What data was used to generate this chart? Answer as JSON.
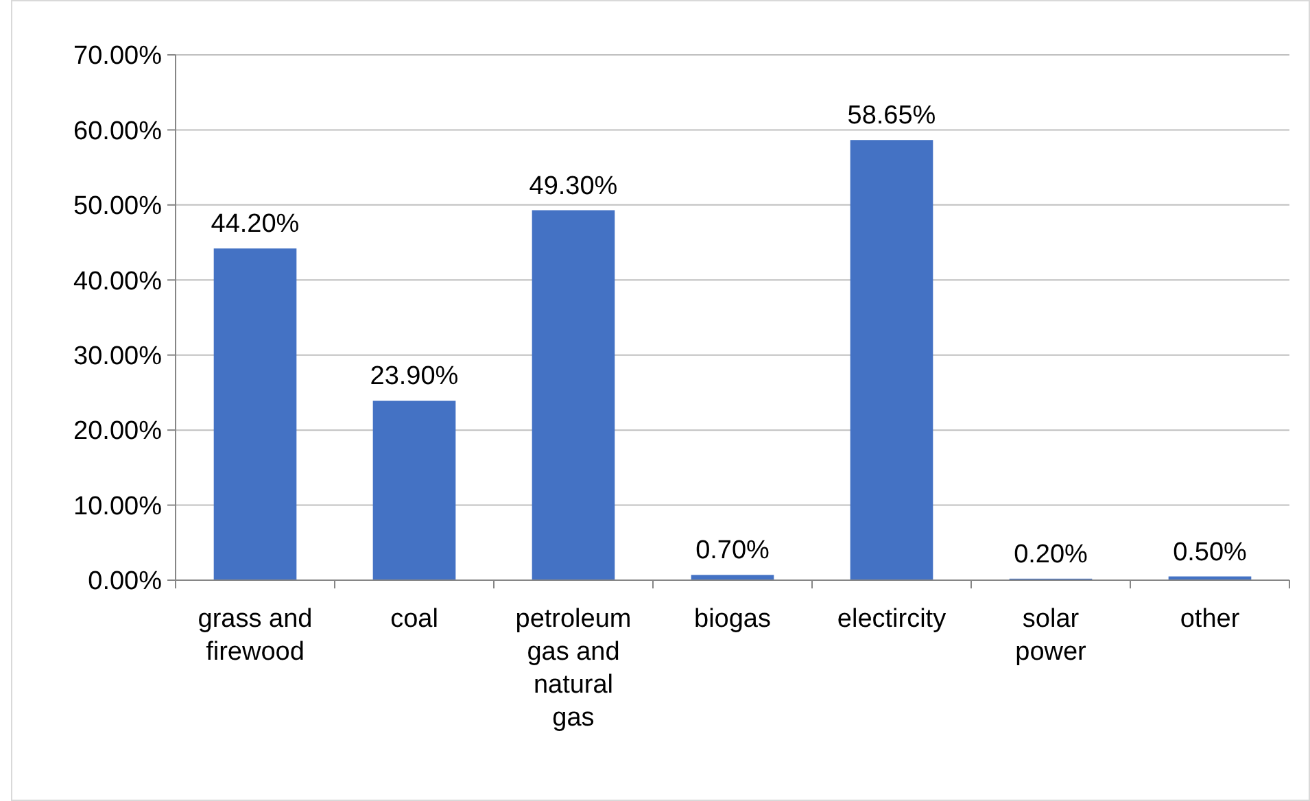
{
  "chart_data": {
    "type": "bar",
    "categories": [
      "grass and firewood",
      "coal",
      "petroleum gas and natural gas",
      "biogas",
      "electircity",
      "solar power",
      "other"
    ],
    "values": [
      44.2,
      23.9,
      49.3,
      0.7,
      58.65,
      0.2,
      0.5
    ],
    "value_labels": [
      "44.20%",
      "23.90%",
      "49.30%",
      "0.70%",
      "58.65%",
      "0.20%",
      "0.50%"
    ],
    "color": "#4472c4",
    "ylim": [
      0,
      70
    ],
    "yticks": [
      {
        "value": 0,
        "label": "0.00%"
      },
      {
        "value": 10,
        "label": "10.00%"
      },
      {
        "value": 20,
        "label": "20.00%"
      },
      {
        "value": 30,
        "label": "30.00%"
      },
      {
        "value": 40,
        "label": "40.00%"
      },
      {
        "value": 50,
        "label": "50.00%"
      },
      {
        "value": 60,
        "label": "60.00%"
      },
      {
        "value": 70,
        "label": "70.00%"
      }
    ],
    "grid": "y"
  }
}
